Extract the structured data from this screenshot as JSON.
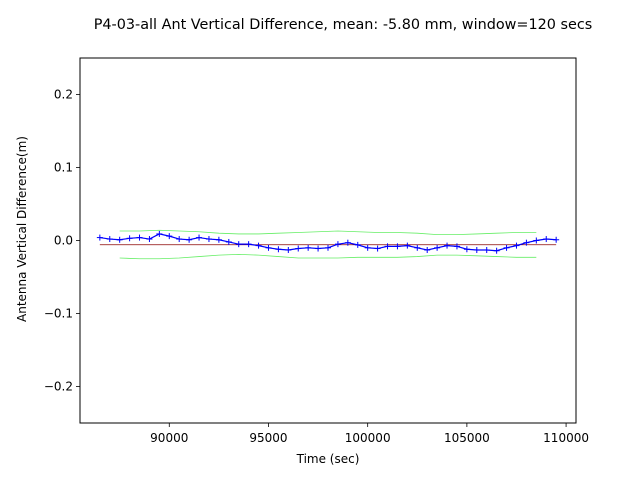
{
  "chart_data": {
    "type": "line",
    "title": "P4-03-all Ant Vertical Difference, mean: -5.80 mm, window=120 secs",
    "xlabel": "Time (sec)",
    "ylabel": "Antenna Vertical Difference(m)",
    "xlim": [
      85500,
      110500
    ],
    "ylim": [
      -0.25,
      0.25
    ],
    "x_ticks": [
      90000,
      95000,
      100000,
      105000,
      110000
    ],
    "x_tick_labels": [
      "90000",
      "95000",
      "100000",
      "105000",
      "110000"
    ],
    "y_ticks": [
      -0.2,
      -0.1,
      0.0,
      0.1,
      0.2
    ],
    "y_tick_labels": [
      "−0.2",
      "−0.1",
      "0.0",
      "0.1",
      "0.2"
    ],
    "grid": false,
    "series": [
      {
        "role": "data",
        "color": "#0000ff",
        "marker": "+",
        "x": [
          86500,
          87000,
          87500,
          88000,
          88500,
          89000,
          89500,
          90000,
          90500,
          91000,
          91500,
          92000,
          92500,
          93000,
          93500,
          94000,
          94500,
          95000,
          95500,
          96000,
          96500,
          97000,
          97500,
          98000,
          98500,
          99000,
          99500,
          100000,
          100500,
          101000,
          101500,
          102000,
          102500,
          103000,
          103500,
          104000,
          104500,
          105000,
          105500,
          106000,
          106500,
          107000,
          107500,
          108000,
          108500,
          109000,
          109500
        ],
        "y": [
          0.004,
          0.002,
          0.001,
          0.003,
          0.004,
          0.002,
          0.009,
          0.006,
          0.002,
          0.001,
          0.004,
          0.002,
          0.001,
          -0.002,
          -0.005,
          -0.005,
          -0.007,
          -0.01,
          -0.012,
          -0.013,
          -0.011,
          -0.01,
          -0.011,
          -0.01,
          -0.005,
          -0.003,
          -0.006,
          -0.01,
          -0.011,
          -0.008,
          -0.008,
          -0.007,
          -0.01,
          -0.013,
          -0.01,
          -0.007,
          -0.008,
          -0.012,
          -0.013,
          -0.013,
          -0.014,
          -0.01,
          -0.007,
          -0.003,
          0.0,
          0.002,
          0.001
        ]
      },
      {
        "role": "mean",
        "color": "#8b0000",
        "x": [
          86500,
          109500
        ],
        "y": [
          -0.0058,
          -0.0058
        ]
      },
      {
        "role": "upper-bound",
        "color": "#66ee66",
        "x": [
          87500,
          88500,
          89500,
          90500,
          91500,
          92500,
          93500,
          94500,
          95500,
          96500,
          97500,
          98500,
          99500,
          100500,
          101500,
          102500,
          103500,
          104500,
          105500,
          106500,
          107500,
          108500
        ],
        "y": [
          0.013,
          0.013,
          0.014,
          0.013,
          0.012,
          0.01,
          0.009,
          0.009,
          0.01,
          0.011,
          0.012,
          0.013,
          0.012,
          0.011,
          0.011,
          0.01,
          0.008,
          0.008,
          0.009,
          0.01,
          0.011,
          0.011
        ]
      },
      {
        "role": "lower-bound",
        "color": "#66ee66",
        "x": [
          87500,
          88500,
          89500,
          90500,
          91500,
          92500,
          93500,
          94500,
          95500,
          96500,
          97500,
          98500,
          99500,
          100500,
          101500,
          102500,
          103500,
          104500,
          105500,
          106500,
          107500,
          108500
        ],
        "y": [
          -0.024,
          -0.025,
          -0.025,
          -0.024,
          -0.022,
          -0.02,
          -0.019,
          -0.02,
          -0.022,
          -0.024,
          -0.024,
          -0.024,
          -0.023,
          -0.023,
          -0.023,
          -0.022,
          -0.02,
          -0.02,
          -0.021,
          -0.022,
          -0.023,
          -0.023
        ]
      }
    ]
  }
}
